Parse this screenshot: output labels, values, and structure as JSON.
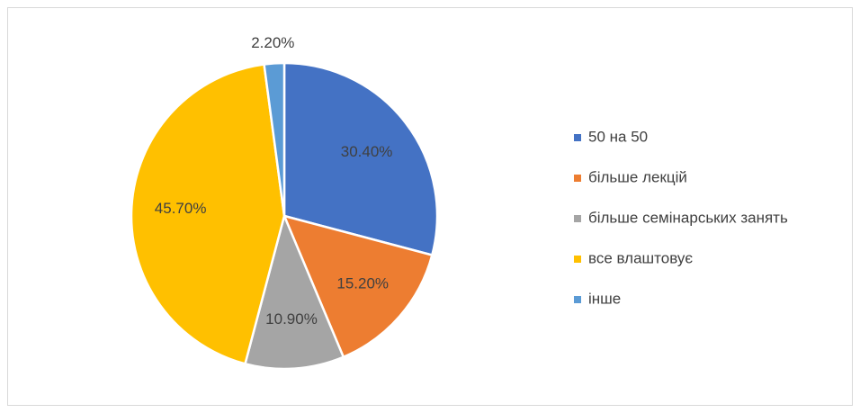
{
  "chart_data": {
    "type": "pie",
    "categories": [
      "50 на 50",
      "більше лекцій",
      "більше семінарських занять",
      "все влаштовує",
      "інше"
    ],
    "values": [
      30.4,
      15.2,
      10.9,
      45.7,
      2.2
    ],
    "value_labels": [
      "30.40%",
      "15.20%",
      "10.90%",
      "45.70%",
      "2.20%"
    ],
    "colors": [
      "#4472c4",
      "#ed7d31",
      "#a5a5a5",
      "#ffc000",
      "#5b9bd5"
    ],
    "legend": "right"
  }
}
